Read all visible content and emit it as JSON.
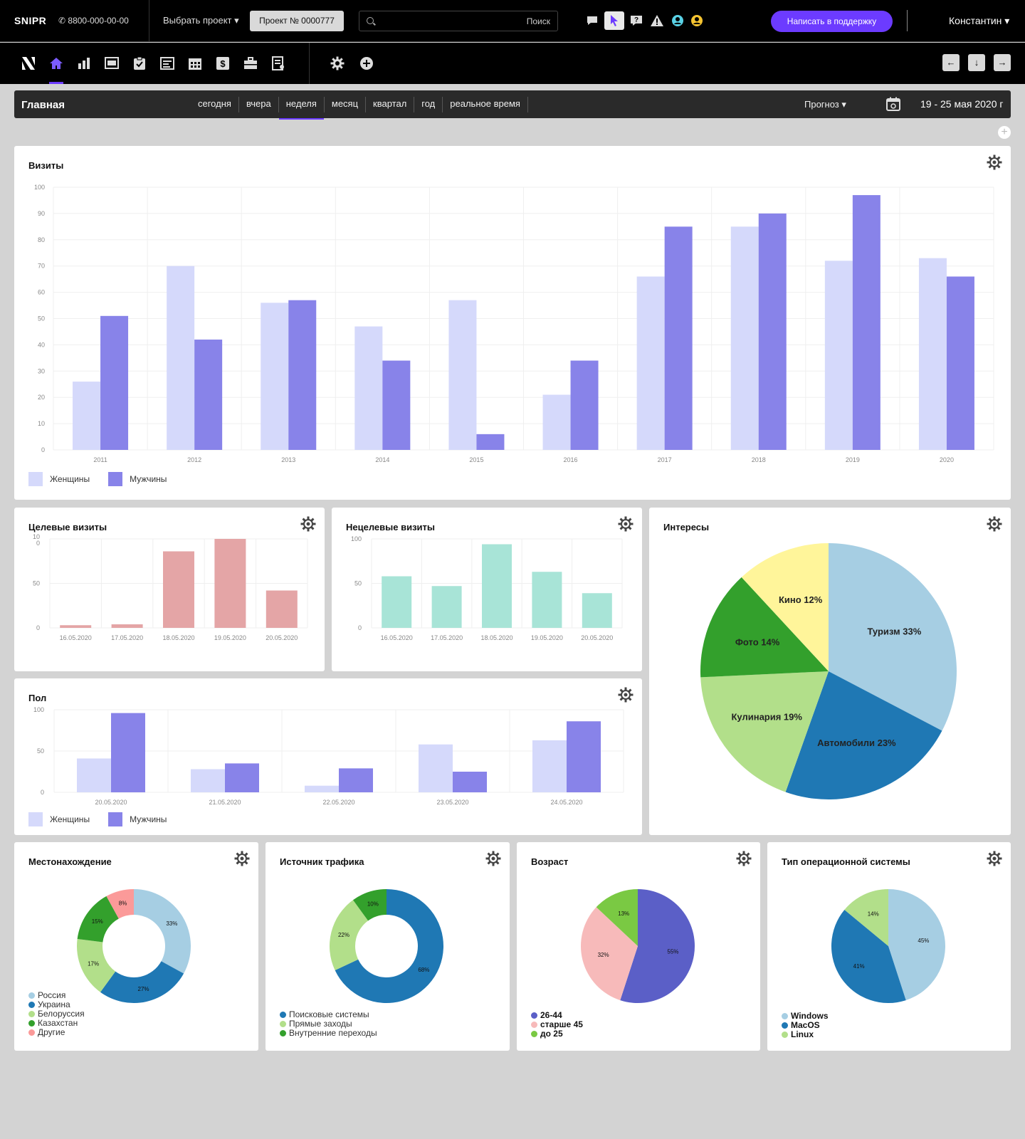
{
  "topbar": {
    "logo": "SNIPR",
    "phone": "✆ 8800-000-00-00",
    "project_select": "Выбрать проект ▾",
    "project_button": "Проект № 0000777",
    "search_placeholder": "",
    "search_label": "Поиск",
    "icons": [
      "chat-icon",
      "cursor-icon",
      "help-icon",
      "warning-icon",
      "user-circle-icon",
      "smile-icon"
    ],
    "support_button": "Написать в поддержку",
    "user_name": "Константин ▾"
  },
  "navbar": {
    "icons": [
      "brand-icon",
      "home-icon",
      "stats-icon",
      "ads-icon",
      "tasks-icon",
      "list-icon",
      "calendar-icon",
      "finance-icon",
      "briefcase-icon",
      "reports-icon"
    ],
    "tools": [
      "settings-icon",
      "add-icon"
    ],
    "arrows": [
      "←",
      "↓",
      "→"
    ]
  },
  "pagebar": {
    "title": "Главная",
    "periods": [
      "сегодня",
      "вчера",
      "неделя",
      "месяц",
      "квартал",
      "год",
      "реальное время"
    ],
    "active_period": 2,
    "forecast": "Прогноз ▾",
    "daterange": "19 - 25 мая 2020 г"
  },
  "colors": {
    "women": "#d5d9fb",
    "men": "#8883e9",
    "target": "#e4a5a6",
    "nontarget": "#a8e4d7",
    "accent": "#6c3bff"
  },
  "visits": {
    "title": "Визиты",
    "legend": [
      "Женщины",
      "Мужчины"
    ]
  },
  "target_visits": {
    "title": "Целевые визиты"
  },
  "nontarget_visits": {
    "title": "Нецелевые визиты"
  },
  "gender": {
    "title": "Пол",
    "legend": [
      "Женщины",
      "Мужчины"
    ]
  },
  "interests": {
    "title": "Интересы"
  },
  "location": {
    "title": "Местонахождение",
    "legend": [
      "Россия",
      "Украина",
      "Белоруссия",
      "Казахстан",
      "Другие"
    ]
  },
  "traffic": {
    "title": "Источник трафика",
    "legend": [
      "Поисковые системы",
      "Прямые заходы",
      "Внутренние переходы"
    ]
  },
  "age": {
    "title": "Возраст",
    "legend": [
      "26-44",
      "старше 45",
      "до 25"
    ]
  },
  "os": {
    "title": "Тип операционной системы",
    "legend": [
      "Windows",
      "MacOS",
      "Linux"
    ]
  },
  "chart_data": [
    {
      "type": "bar",
      "title": "Визиты",
      "categories": [
        "2011",
        "2012",
        "2013",
        "2014",
        "2015",
        "2016",
        "2017",
        "2018",
        "2019",
        "2020"
      ],
      "series": [
        {
          "name": "Женщины",
          "values": [
            26,
            70,
            56,
            47,
            57,
            21,
            66,
            85,
            72,
            73
          ]
        },
        {
          "name": "Мужчины",
          "values": [
            51,
            42,
            57,
            34,
            6,
            34,
            85,
            90,
            97,
            66
          ]
        }
      ],
      "ylim": [
        0,
        100
      ],
      "yticks": [
        0,
        10,
        20,
        30,
        40,
        50,
        60,
        70,
        80,
        90,
        100
      ],
      "legend": "bottom-left",
      "grid": true
    },
    {
      "type": "bar",
      "title": "Целевые визиты",
      "categories": [
        "16.05.2020",
        "17.05.2020",
        "18.05.2020",
        "19.05.2020",
        "20.05.2020"
      ],
      "values": [
        3,
        4,
        86,
        100,
        42
      ],
      "ylim": [
        0,
        100
      ],
      "ytick_labels": [
        "0",
        "50",
        "10\n0"
      ],
      "grid": true
    },
    {
      "type": "bar",
      "title": "Нецелевые визиты",
      "categories": [
        "16.05.2020",
        "17.05.2020",
        "18.05.2020",
        "19.05.2020",
        "20.05.2020"
      ],
      "values": [
        58,
        47,
        94,
        63,
        39
      ],
      "ylim": [
        0,
        100
      ],
      "ytick_labels": [
        "0",
        "50",
        "100"
      ],
      "grid": true
    },
    {
      "type": "bar",
      "title": "Пол",
      "categories": [
        "20.05.2020",
        "21.05.2020",
        "22.05.2020",
        "23.05.2020",
        "24.05.2020"
      ],
      "series": [
        {
          "name": "Женщины",
          "values": [
            41,
            28,
            8,
            58,
            63
          ]
        },
        {
          "name": "Мужчины",
          "values": [
            96,
            35,
            29,
            25,
            86
          ]
        }
      ],
      "ylim": [
        0,
        100
      ],
      "ytick_labels": [
        "0",
        "50",
        "100"
      ],
      "legend": "bottom-left",
      "grid": true
    },
    {
      "type": "pie",
      "title": "Интересы",
      "slices": [
        {
          "label": "Туризм 33%",
          "value": 33,
          "color": "#a6cee3"
        },
        {
          "label": "Автомобили 23%",
          "value": 23,
          "color": "#1f78b4"
        },
        {
          "label": "Кулинария 19%",
          "value": 19,
          "color": "#b2df8a"
        },
        {
          "label": "Фото 14%",
          "value": 14,
          "color": "#33a02c"
        },
        {
          "label": "Кино 12%",
          "value": 12,
          "color": "#fff59a"
        }
      ]
    },
    {
      "type": "pie",
      "donut": true,
      "title": "Местонахождение",
      "slices": [
        {
          "label": "33%",
          "name": "Россия",
          "value": 33,
          "color": "#a6cee3"
        },
        {
          "label": "27%",
          "name": "Украина",
          "value": 27,
          "color": "#1f78b4"
        },
        {
          "label": "17%",
          "name": "Белоруссия",
          "value": 17,
          "color": "#b2df8a"
        },
        {
          "label": "15%",
          "name": "Казахстан",
          "value": 15,
          "color": "#33a02c"
        },
        {
          "label": "8%",
          "name": "Другие",
          "value": 8,
          "color": "#fb9a99"
        }
      ]
    },
    {
      "type": "pie",
      "donut": true,
      "title": "Источник трафика",
      "slices": [
        {
          "label": "68%",
          "name": "Поисковые системы",
          "value": 68,
          "color": "#1f78b4"
        },
        {
          "label": "22%",
          "name": "Прямые заходы",
          "value": 22,
          "color": "#b2df8a"
        },
        {
          "label": "10%",
          "name": "Внутренние переходы",
          "value": 10,
          "color": "#33a02c"
        }
      ]
    },
    {
      "type": "pie",
      "title": "Возраст",
      "slices": [
        {
          "label": "55%",
          "name": "26-44",
          "value": 55,
          "color": "#5b5fc7"
        },
        {
          "label": "32%",
          "name": "старше 45",
          "value": 32,
          "color": "#f7baba"
        },
        {
          "label": "13%",
          "name": "до 25",
          "value": 13,
          "color": "#7ac943"
        }
      ]
    },
    {
      "type": "pie",
      "title": "Тип операционной системы",
      "slices": [
        {
          "label": "45%",
          "name": "Windows",
          "value": 45,
          "color": "#a6cee3"
        },
        {
          "label": "41%",
          "name": "MacOS",
          "value": 41,
          "color": "#1f78b4"
        },
        {
          "label": "14%",
          "name": "Linux",
          "value": 14,
          "color": "#b2df8a"
        }
      ]
    }
  ]
}
